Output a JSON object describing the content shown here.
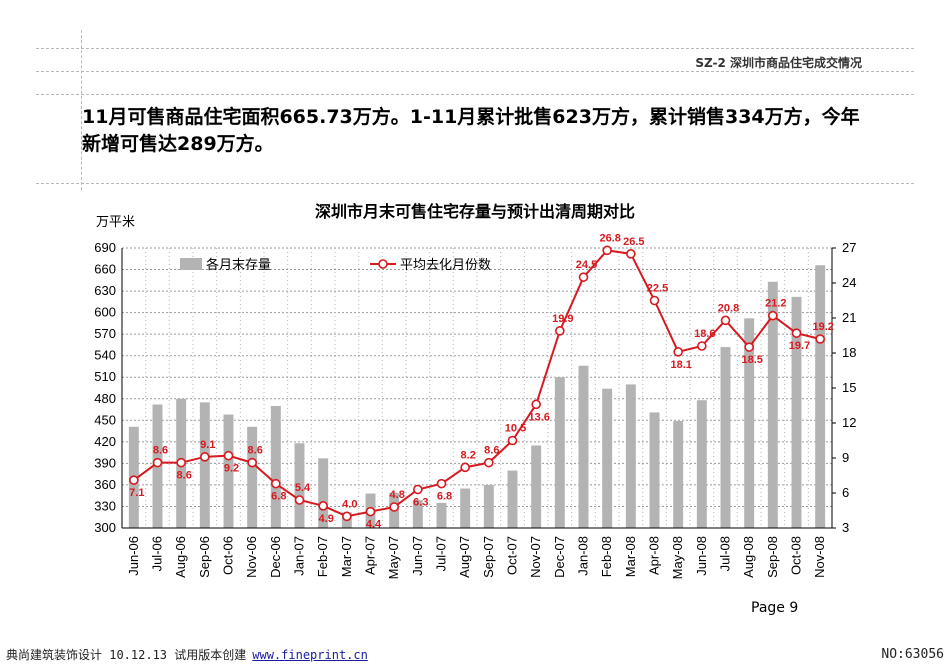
{
  "header": {
    "section_tag": "SZ-2  深圳市商品住宅成交情况",
    "headline": "11月可售商品住宅面积665.73万方。1-11月累计批售623万方，累计销售334万方，今年新增可售达289万方。"
  },
  "footer": {
    "page_label": "Page 9",
    "left_text": "典尚建筑装饰设计 10.12.13 试用版本创建",
    "link_text": "www.fineprint.cn",
    "right_text": "NO:63056"
  },
  "chart_data": {
    "type": "bar",
    "title": "深圳市月末可售住宅存量与预计出清周期对比",
    "ylabel": "万平米",
    "xlabel": "",
    "categories": [
      "Jun-06",
      "Jul-06",
      "Aug-06",
      "Sep-06",
      "Oct-06",
      "Nov-06",
      "Dec-06",
      "Jan-07",
      "Feb-07",
      "Mar-07",
      "Apr-07",
      "May-07",
      "Jun-07",
      "Jul-07",
      "Aug-07",
      "Sep-07",
      "Oct-07",
      "Nov-07",
      "Dec-07",
      "Jan-08",
      "Feb-08",
      "Mar-08",
      "Apr-08",
      "May-08",
      "Jun-08",
      "Jul-08",
      "Aug-08",
      "Sep-08",
      "Oct-08",
      "Nov-08"
    ],
    "ylim": [
      300,
      690
    ],
    "yticks": [
      300,
      330,
      360,
      390,
      420,
      450,
      480,
      510,
      540,
      570,
      600,
      630,
      660,
      690
    ],
    "y2lim": [
      3,
      27
    ],
    "y2ticks": [
      3,
      6,
      9,
      12,
      15,
      18,
      21,
      24,
      27
    ],
    "grid": true,
    "legend_position": "top",
    "series": [
      {
        "name": "各月末存量",
        "type": "bar",
        "axis": "left",
        "color": "#b3b3b3",
        "values": [
          441,
          472,
          480,
          475,
          458,
          441,
          470,
          418,
          397,
          322,
          348,
          349,
          339,
          335,
          355,
          360,
          380,
          415,
          510,
          526,
          494,
          500,
          461,
          449,
          478,
          552,
          592,
          643,
          622,
          666
        ]
      },
      {
        "name": "平均去化月份数",
        "type": "line",
        "axis": "right",
        "color": "#d71920",
        "values": [
          7.1,
          8.6,
          8.6,
          9.1,
          9.2,
          8.6,
          6.8,
          5.4,
          4.9,
          4.0,
          4.4,
          4.8,
          6.3,
          6.8,
          8.2,
          8.6,
          10.5,
          13.6,
          19.9,
          24.5,
          26.8,
          26.5,
          22.5,
          18.1,
          18.6,
          20.8,
          18.5,
          21.2,
          19.7,
          19.2
        ],
        "labels": [
          "7.1",
          "8.6",
          "8.6",
          "9.1",
          "9.2",
          "8.6",
          "6.8",
          "5.4",
          "4.9",
          "4.0",
          "4.4",
          "4.8",
          "6.3",
          "6.8",
          "8.2",
          "8.6",
          "10.5",
          "13.6",
          "19.9",
          "24.5",
          "26.8",
          "26.5",
          "22.5",
          "18.1",
          "18.6",
          "20.8",
          "18.5",
          "21.2",
          "19.7",
          "19.2"
        ]
      }
    ]
  }
}
